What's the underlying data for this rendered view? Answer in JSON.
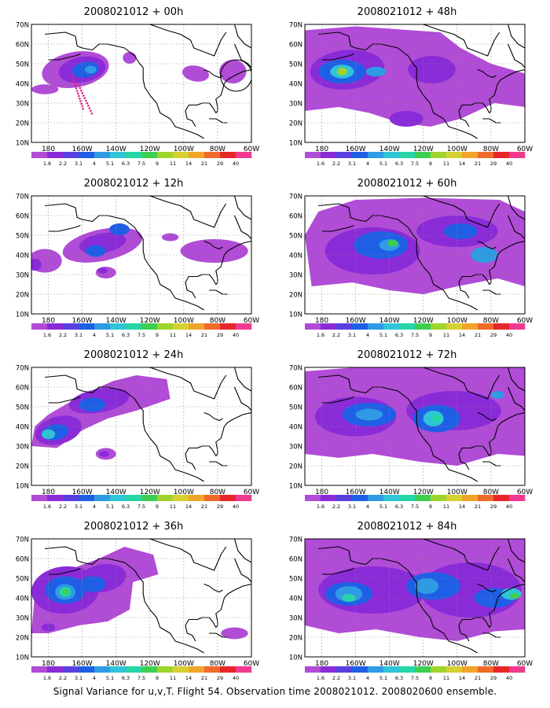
{
  "panels": [
    {
      "title": "2008021012 + 00h",
      "mode": "f00"
    },
    {
      "title": "2008021012 + 48h",
      "mode": "f48"
    },
    {
      "title": "2008021012 + 12h",
      "mode": "f12"
    },
    {
      "title": "2008021012 + 60h",
      "mode": "f60"
    },
    {
      "title": "2008021012 + 24h",
      "mode": "f24"
    },
    {
      "title": "2008021012 + 72h",
      "mode": "f72"
    },
    {
      "title": "2008021012 + 36h",
      "mode": "f36"
    },
    {
      "title": "2008021012 + 84h",
      "mode": "f84"
    }
  ],
  "lat_labels": [
    "70N",
    "60N",
    "50N",
    "40N",
    "30N",
    "20N",
    "10N"
  ],
  "lon_labels": [
    "180",
    "160W",
    "140W",
    "120W",
    "100W",
    "80W",
    "60W"
  ],
  "colorbar": {
    "labels": [
      "1.6",
      "2.2",
      "3.1",
      "4",
      "5.1",
      "6.3",
      "7.5",
      "9",
      "11",
      "14",
      "21",
      "29",
      "40"
    ],
    "colors": [
      "#b04cd6",
      "#8a2bd8",
      "#5a3fe0",
      "#1f5fe6",
      "#2f9be4",
      "#2fc4d8",
      "#26d6a8",
      "#3ccf52",
      "#9fd42c",
      "#d6d030",
      "#f0a52a",
      "#f06a2a",
      "#e8262a",
      "#f03a90"
    ]
  },
  "footer": "Signal Variance for u,v,T. Flight 54. Observation time 2008021012. 2008020600 ensemble."
}
